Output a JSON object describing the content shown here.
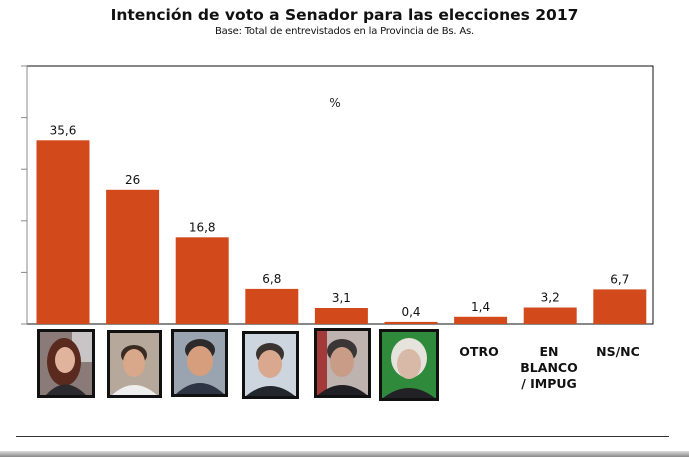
{
  "chart_data": {
    "type": "bar",
    "title": "Intención de voto a Senador para las elecciones 2017",
    "subtitle": "Base: Total de entrevistados en la Provincia de Bs. As.",
    "unit_label": "%",
    "xlabel": "",
    "ylabel": "",
    "ylim": [
      0,
      50
    ],
    "ytick_count": 6,
    "grid": false,
    "categories": [
      "candidate-1",
      "candidate-2",
      "candidate-3",
      "candidate-4",
      "candidate-5",
      "candidate-6",
      "OTRO",
      "EN BLANCO / IMPUG",
      "NS/NC"
    ],
    "category_labels": [
      "",
      "",
      "",
      "",
      "",
      "",
      "OTRO",
      "EN\nBLANCO\n/ IMPUG",
      "NS/NC"
    ],
    "values": [
      35.6,
      26,
      16.8,
      6.8,
      3.1,
      0.4,
      1.4,
      3.2,
      6.7
    ],
    "value_labels": [
      "35,6",
      "26",
      "16,8",
      "6,8",
      "3,1",
      "0,4",
      "1,4",
      "3,2",
      "6,7"
    ],
    "bar_color": "#d24a1c"
  },
  "labels": {
    "otro": "OTRO",
    "blanco_1": "EN",
    "blanco_2": "BLANCO",
    "blanco_3": "/ IMPUG",
    "nsnc": "NS/NC"
  }
}
